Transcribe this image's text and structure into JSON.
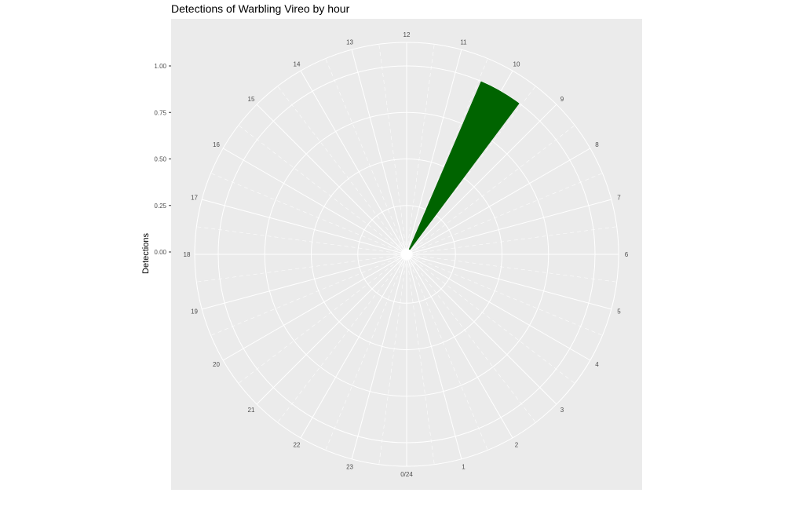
{
  "chart_data": {
    "type": "bar",
    "coord": "polar",
    "title": "Detections of Warbling Vireo by hour",
    "xlabel": "",
    "ylabel": "Detections",
    "categories": [
      "0/24",
      "1",
      "2",
      "3",
      "4",
      "5",
      "6",
      "7",
      "8",
      "9",
      "10",
      "11",
      "12",
      "13",
      "14",
      "15",
      "16",
      "17",
      "18",
      "19",
      "20",
      "21",
      "22",
      "23"
    ],
    "values": [
      0,
      0,
      0,
      0,
      0,
      0,
      0,
      0,
      0,
      0,
      1,
      0,
      0,
      0,
      0,
      0,
      0,
      0,
      0,
      0,
      0,
      0,
      0,
      0
    ],
    "ylim": [
      0,
      1.0
    ],
    "y_ticks": [
      "0.00",
      "0.25",
      "0.50",
      "0.75",
      "1.00"
    ],
    "y_tick_values": [
      0,
      0.25,
      0.5,
      0.75,
      1.0
    ],
    "bar_color": "#006400",
    "panel_color": "#EBEBEB",
    "grid": true,
    "legend": "none"
  }
}
